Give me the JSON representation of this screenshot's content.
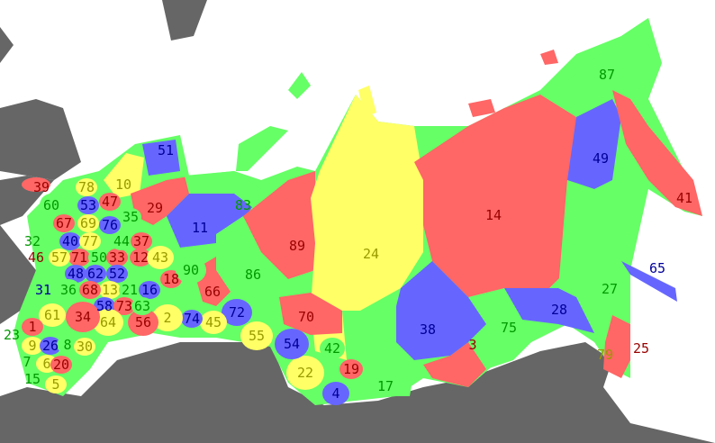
{
  "colors": {
    "red": "#ff6666",
    "green": "#66ff66",
    "blue": "#6666ff",
    "yellow": "#ffff66",
    "foreign_land": "#666666",
    "sea": "#ffffff",
    "text_red": "#990000",
    "text_green": "#009900",
    "text_blue": "#000099",
    "text_yellow": "#999900"
  },
  "regions": [
    {
      "n": "39",
      "c": "red"
    },
    {
      "n": "60",
      "c": "green"
    },
    {
      "n": "78",
      "c": "yellow"
    },
    {
      "n": "53",
      "c": "blue"
    },
    {
      "n": "47",
      "c": "red"
    },
    {
      "n": "10",
      "c": "yellow"
    },
    {
      "n": "29",
      "c": "red"
    },
    {
      "n": "51",
      "c": "blue"
    },
    {
      "n": "83",
      "c": "green"
    },
    {
      "n": "11",
      "c": "blue"
    },
    {
      "n": "35",
      "c": "green"
    },
    {
      "n": "69",
      "c": "yellow"
    },
    {
      "n": "76",
      "c": "blue"
    },
    {
      "n": "67",
      "c": "red"
    },
    {
      "n": "32",
      "c": "green"
    },
    {
      "n": "40",
      "c": "blue"
    },
    {
      "n": "77",
      "c": "yellow"
    },
    {
      "n": "71",
      "c": "red"
    },
    {
      "n": "50",
      "c": "green"
    },
    {
      "n": "33",
      "c": "red"
    },
    {
      "n": "44",
      "c": "green"
    },
    {
      "n": "37",
      "c": "red"
    },
    {
      "n": "46",
      "c": "red"
    },
    {
      "n": "57",
      "c": "yellow"
    },
    {
      "n": "48",
      "c": "blue"
    },
    {
      "n": "62",
      "c": "blue"
    },
    {
      "n": "52",
      "c": "blue"
    },
    {
      "n": "12",
      "c": "red"
    },
    {
      "n": "43",
      "c": "yellow"
    },
    {
      "n": "13",
      "c": "yellow"
    },
    {
      "n": "21",
      "c": "green"
    },
    {
      "n": "31",
      "c": "blue"
    },
    {
      "n": "36",
      "c": "green"
    },
    {
      "n": "68",
      "c": "red"
    },
    {
      "n": "58",
      "c": "blue"
    },
    {
      "n": "73",
      "c": "red"
    },
    {
      "n": "16",
      "c": "blue"
    },
    {
      "n": "18",
      "c": "red"
    },
    {
      "n": "90",
      "c": "green"
    },
    {
      "n": "66",
      "c": "red"
    },
    {
      "n": "86",
      "c": "green"
    },
    {
      "n": "89",
      "c": "red"
    },
    {
      "n": "24",
      "c": "yellow"
    },
    {
      "n": "14",
      "c": "red"
    },
    {
      "n": "87",
      "c": "green"
    },
    {
      "n": "49",
      "c": "blue"
    },
    {
      "n": "41",
      "c": "red"
    },
    {
      "n": "65",
      "c": "blue"
    },
    {
      "n": "27",
      "c": "green"
    },
    {
      "n": "28",
      "c": "blue"
    },
    {
      "n": "25",
      "c": "red"
    },
    {
      "n": "79",
      "c": "yellow"
    },
    {
      "n": "75",
      "c": "green"
    },
    {
      "n": "3",
      "c": "red"
    },
    {
      "n": "38",
      "c": "blue"
    },
    {
      "n": "17",
      "c": "green"
    },
    {
      "n": "4",
      "c": "blue"
    },
    {
      "n": "19",
      "c": "red"
    },
    {
      "n": "42",
      "c": "green"
    },
    {
      "n": "22",
      "c": "yellow"
    },
    {
      "n": "54",
      "c": "blue"
    },
    {
      "n": "70",
      "c": "red"
    },
    {
      "n": "55",
      "c": "yellow"
    },
    {
      "n": "72",
      "c": "blue"
    },
    {
      "n": "45",
      "c": "yellow"
    },
    {
      "n": "74",
      "c": "blue"
    },
    {
      "n": "2",
      "c": "yellow"
    },
    {
      "n": "56",
      "c": "red"
    },
    {
      "n": "63",
      "c": "green"
    },
    {
      "n": "64",
      "c": "yellow"
    },
    {
      "n": "34",
      "c": "red"
    },
    {
      "n": "61",
      "c": "yellow"
    },
    {
      "n": "1",
      "c": "red"
    },
    {
      "n": "23",
      "c": "green"
    },
    {
      "n": "9",
      "c": "yellow"
    },
    {
      "n": "26",
      "c": "blue"
    },
    {
      "n": "8",
      "c": "green"
    },
    {
      "n": "30",
      "c": "yellow"
    },
    {
      "n": "7",
      "c": "green"
    },
    {
      "n": "6",
      "c": "yellow"
    },
    {
      "n": "20",
      "c": "red"
    },
    {
      "n": "15",
      "c": "green"
    },
    {
      "n": "5",
      "c": "yellow"
    }
  ]
}
